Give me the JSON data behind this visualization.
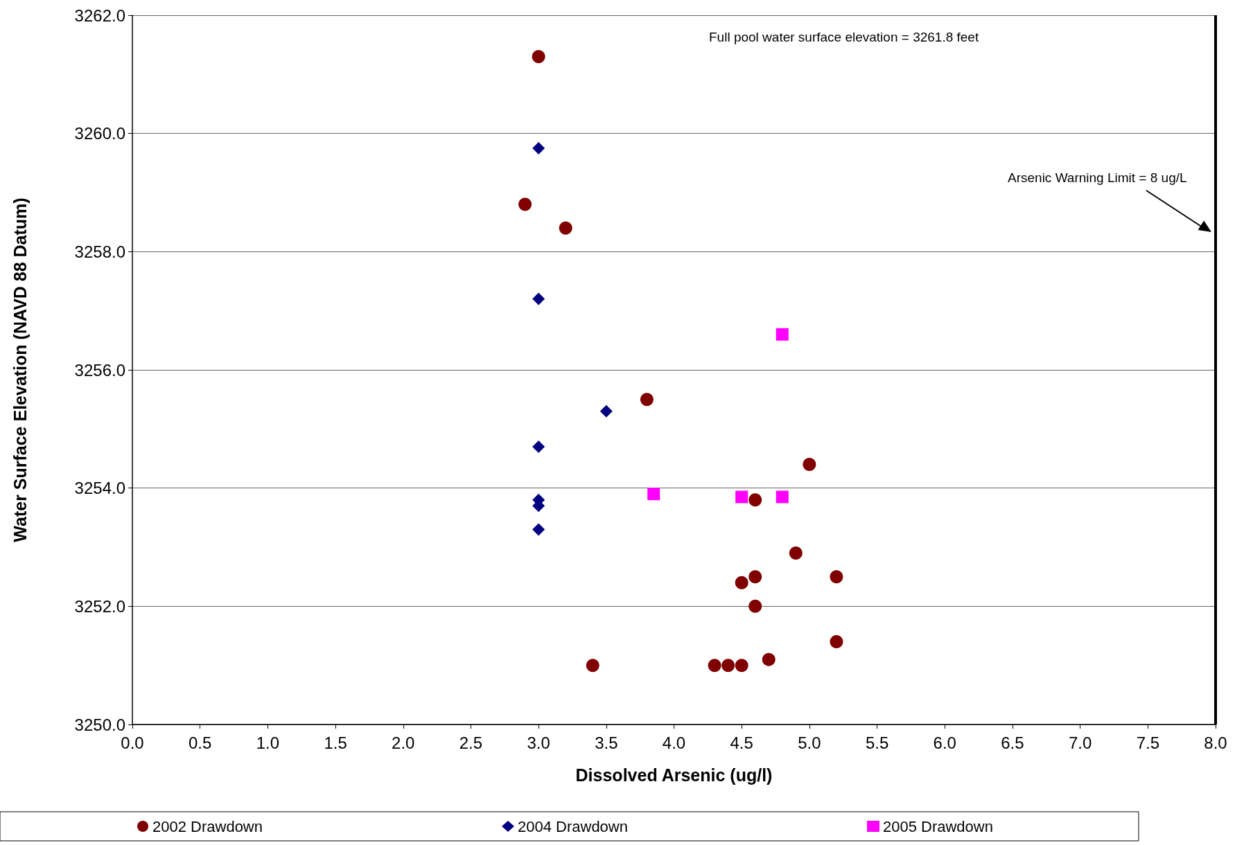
{
  "chart_data": {
    "type": "scatter",
    "xlabel": "Dissolved Arsenic (ug/l)",
    "ylabel": "Water Surface Elevation (NAVD 88 Datum)",
    "annotations": [
      "Full pool water surface elevation = 3261.8 feet"
    ],
    "xlim": [
      0,
      8
    ],
    "xticks": [
      {
        "value": 0,
        "label": "0.0"
      },
      {
        "value": 0.5,
        "label": "0.5"
      },
      {
        "value": 1,
        "label": "1.0"
      },
      {
        "value": 1.5,
        "label": "1.5"
      },
      {
        "value": 2,
        "label": "2.0"
      },
      {
        "value": 2.5,
        "label": "2.5"
      },
      {
        "value": 3,
        "label": "3.0"
      },
      {
        "value": 3.5,
        "label": "3.5"
      },
      {
        "value": 4,
        "label": "4.0"
      },
      {
        "value": 4.5,
        "label": "4.5"
      },
      {
        "value": 5,
        "label": "5.0"
      },
      {
        "value": 5.5,
        "label": "5.5"
      },
      {
        "value": 6,
        "label": "6.0"
      },
      {
        "value": 6.5,
        "label": "6.5"
      },
      {
        "value": 7,
        "label": "7.0"
      },
      {
        "value": 7.5,
        "label": "7.5"
      },
      {
        "value": 8,
        "label": "8.0"
      }
    ],
    "ylim": [
      3250,
      3262
    ],
    "yticks": [
      {
        "value": 3250,
        "label": "3250.0"
      },
      {
        "value": 3252,
        "label": "3252.0"
      },
      {
        "value": 3254,
        "label": "3254.0"
      },
      {
        "value": 3256,
        "label": "3256.0"
      },
      {
        "value": 3258,
        "label": "3258.0"
      },
      {
        "value": 3260,
        "label": "3260.0"
      },
      {
        "value": 3262,
        "label": "3262.0"
      }
    ],
    "grid": "y",
    "legend": "bottom",
    "ref_lines": [
      {
        "axis": "x",
        "value": 8,
        "label": "Arsenic Warning Limit = 8 ug/L",
        "color": "#000000",
        "line_style": "solid"
      }
    ],
    "series": [
      {
        "name": "2002 Drawdown",
        "color": "#800000",
        "marker": "circle",
        "x": [
          3.0,
          2.9,
          3.2,
          3.8,
          5.0,
          4.6,
          4.9,
          4.6,
          5.2,
          4.5,
          4.6,
          5.2,
          3.4,
          4.3,
          4.4,
          4.5,
          4.7
        ],
        "values": [
          3261.3,
          3258.8,
          3258.4,
          3255.5,
          3254.4,
          3253.8,
          3252.9,
          3252.5,
          3252.5,
          3252.4,
          3252.0,
          3251.4,
          3251.0,
          3251.0,
          3251.0,
          3251.0,
          3251.1
        ]
      },
      {
        "name": "2004 Drawdown",
        "color": "#000080",
        "marker": "diamond",
        "x": [
          3,
          3,
          3.5,
          3,
          3,
          3,
          3
        ],
        "values": [
          3259.75,
          3257.2,
          3255.3,
          3254.7,
          3253.8,
          3253.7,
          3253.3
        ]
      },
      {
        "name": "2005 Drawdown",
        "color": "#ff00ff",
        "marker": "square",
        "x": [
          4.8,
          3.85,
          4.5,
          4.8
        ],
        "values": [
          3256.6,
          3253.9,
          3253.85,
          3253.85
        ]
      }
    ]
  }
}
